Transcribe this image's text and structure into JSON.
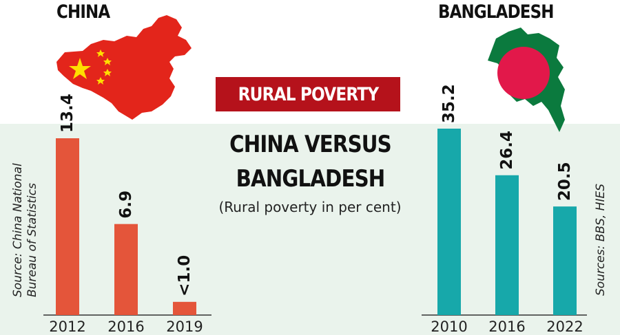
{
  "headline": "RURAL POVERTY",
  "subtitle_line1": "CHINA VERSUS",
  "subtitle_line2": "BANGLADESH",
  "unit_note": "(Rural poverty in per cent)",
  "colors": {
    "china_bar": "#e4553a",
    "bangladesh_bar": "#17a8aa",
    "headline_bg": "#b5121b",
    "band_bg": "#eaf3ec"
  },
  "icons": [
    "china-map-flag-icon",
    "bangladesh-map-flag-icon"
  ],
  "chart_data": [
    {
      "type": "bar",
      "country": "CHINA",
      "title": "CHINA",
      "source": "Source: China National\nBureau of Statistics",
      "categories": [
        "2012",
        "2016",
        "2019"
      ],
      "values": [
        13.4,
        6.9,
        1.0
      ],
      "value_labels": [
        "13.4",
        "6.9",
        "<1.0"
      ],
      "ylim": [
        0,
        14
      ],
      "grid": false
    },
    {
      "type": "bar",
      "country": "BANGLADESH",
      "title": "BANGLADESH",
      "source": "Sources: BBS, HIES",
      "categories": [
        "2010",
        "2016",
        "2022"
      ],
      "values": [
        35.2,
        26.4,
        20.5
      ],
      "value_labels": [
        "35.2",
        "26.4",
        "20.5"
      ],
      "ylim": [
        0,
        36
      ],
      "grid": false
    }
  ]
}
